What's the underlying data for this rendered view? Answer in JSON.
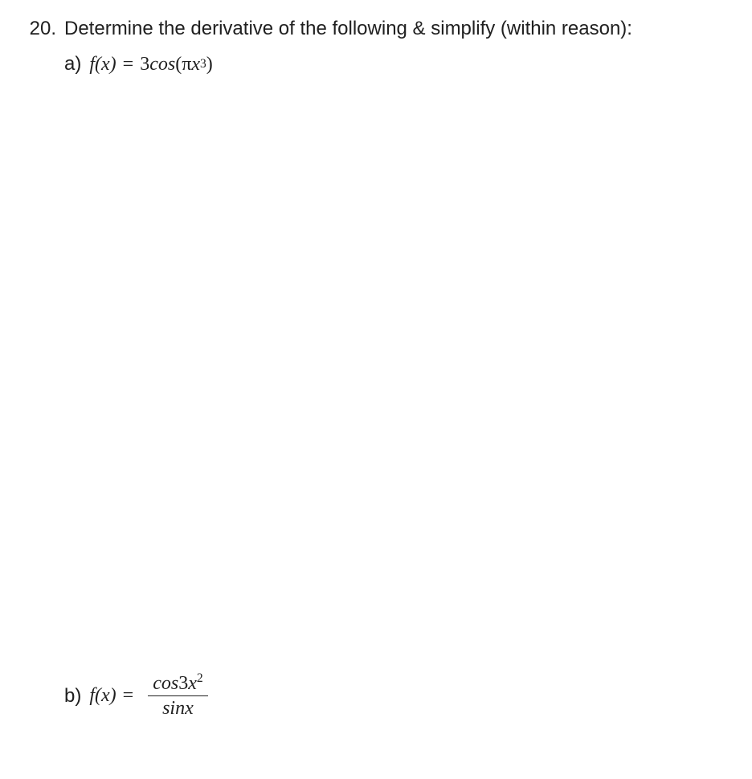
{
  "question": {
    "number": "20.",
    "prompt": "Determine the derivative of the following & simplify (within reason):"
  },
  "parts": {
    "a": {
      "label": "a)",
      "fx_text": "f(x)",
      "equals": "=",
      "expr_coeff": "3",
      "expr_func": "cos",
      "expr_open": "(",
      "expr_pi": "π",
      "expr_var": "x",
      "expr_exp": "3",
      "expr_close": ")"
    },
    "b": {
      "label": "b)",
      "fx_text": "f(x)",
      "equals": "=",
      "num_func": "cos",
      "num_coeff": "3",
      "num_var": "x",
      "num_exp": "2",
      "den_func": "sin",
      "den_var": "x"
    }
  },
  "style": {
    "text_color": "#202020",
    "background_color": "#ffffff",
    "prompt_fontsize": 24,
    "math_fontsize": 24
  }
}
